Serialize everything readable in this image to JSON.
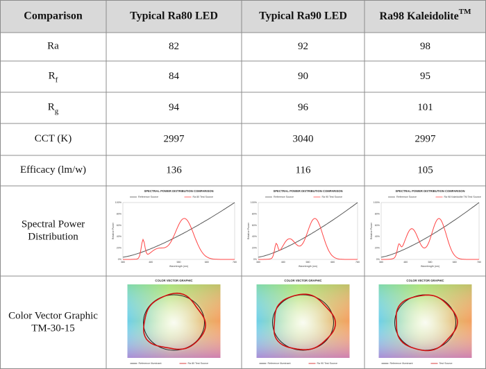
{
  "table": {
    "header": [
      "Comparison",
      "Typical Ra80 LED",
      "Typical Ra90 LED",
      {
        "main": "Ra98 Kaleidolite",
        "sup": "TM"
      }
    ],
    "rows": [
      [
        {
          "main": "Ra"
        },
        82,
        92,
        98
      ],
      [
        {
          "main": "R",
          "sub": "f"
        },
        84,
        90,
        95
      ],
      [
        {
          "main": "R",
          "sub": "g"
        },
        94,
        96,
        101
      ],
      [
        {
          "main": "CCT (K)"
        },
        2997,
        3040,
        2997
      ],
      [
        {
          "main": "Efficacy  (lm/w)"
        },
        136,
        116,
        105
      ]
    ],
    "spd_row": {
      "label": [
        "Spectral Power",
        "Distribution"
      ],
      "charts": [
        {
          "title": "SPECTRAL POWER DISTRIBUTION COMPARISON",
          "legend": [
            "Reference Source",
            "Ra 80 Test Source"
          ],
          "ylabel": "Relative Power",
          "xlabel": "Wavelength (nm)",
          "yticks": [
            "0%",
            "20%",
            "40%",
            "60%",
            "80%",
            "100%"
          ],
          "xticks": [
            380,
            480,
            580,
            680,
            780
          ]
        },
        {
          "title": "SPECTRAL POWER DISTRIBUTION COMPARISON",
          "legend": [
            "Reference Source",
            "Ra 90 Test Source"
          ],
          "ylabel": "Relative Power",
          "xlabel": "Wavelength (nm)",
          "yticks": [
            "0%",
            "20%",
            "40%",
            "60%",
            "80%",
            "100%"
          ],
          "xticks": [
            380,
            480,
            580,
            680,
            780
          ]
        },
        {
          "title": "SPECTRAL POWER DISTRIBUTION COMPARISON",
          "legend": [
            "Reference Source",
            "Ra 98 Kaleidolite TM Test Source"
          ],
          "ylabel": "Relative Power",
          "xlabel": "Wavelength (nm)",
          "yticks": [
            "0%",
            "20%",
            "40%",
            "60%",
            "80%",
            "100%"
          ],
          "xticks": [
            380,
            480,
            580,
            680,
            780
          ]
        }
      ]
    },
    "cvg_row": {
      "label": [
        "Color Vector Graphic",
        "TM-30-15"
      ],
      "charts": [
        {
          "title": "COLOR VECTOR GRAPHIC",
          "legend": [
            "Reference Illuminant",
            "Ra 80 Test Source"
          ]
        },
        {
          "title": "COLOR VECTOR GRAPHIC",
          "legend": [
            "Reference Illuminant",
            "Ra 90 Test Source"
          ]
        },
        {
          "title": "COLOR VECTOR GRAPHIC",
          "legend": [
            "Reference Illuminant",
            "Test Source"
          ]
        }
      ]
    }
  }
}
